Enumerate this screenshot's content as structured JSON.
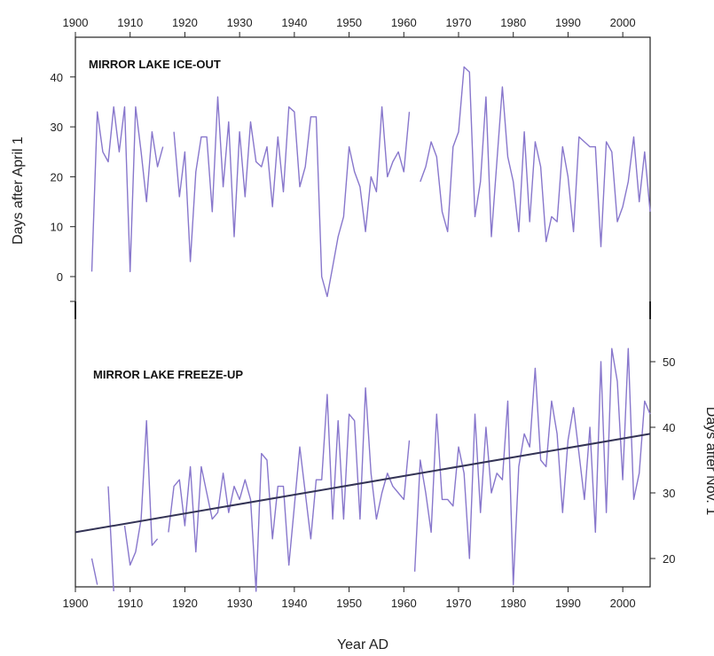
{
  "chart_data": [
    {
      "type": "line",
      "title": "MIRROR LAKE ICE-OUT",
      "xlabel": "Year AD",
      "ylabel": "Days after April 1",
      "xlim": [
        1900,
        2005
      ],
      "ylim": [
        -8,
        45
      ],
      "x_ticks": [
        1900,
        1910,
        1920,
        1930,
        1940,
        1950,
        1960,
        1970,
        1980,
        1990,
        2000
      ],
      "y_ticks": [
        0,
        10,
        20,
        30,
        40
      ],
      "series_color": "#8877cc",
      "segments": [
        {
          "x": [
            1903,
            1904,
            1905,
            1906,
            1907,
            1908,
            1909,
            1910,
            1911,
            1912,
            1913,
            1914,
            1915,
            1916
          ],
          "y": [
            1,
            33,
            25,
            23,
            34,
            25,
            34,
            1,
            34,
            25,
            15,
            29,
            22,
            26
          ]
        },
        {
          "x": [
            1918,
            1919,
            1920,
            1921,
            1922,
            1923,
            1924,
            1925,
            1926,
            1927,
            1928,
            1929,
            1930,
            1931,
            1932,
            1933,
            1934,
            1935,
            1936,
            1937,
            1938,
            1939,
            1940,
            1941,
            1942,
            1943,
            1944,
            1945,
            1946,
            1947,
            1948,
            1949,
            1950,
            1951,
            1952,
            1953,
            1954,
            1955,
            1956,
            1957,
            1958,
            1959,
            1960,
            1961
          ],
          "y": [
            29,
            16,
            25,
            3,
            21,
            28,
            28,
            13,
            36,
            18,
            31,
            8,
            29,
            16,
            31,
            23,
            22,
            26,
            14,
            28,
            17,
            34,
            33,
            18,
            22,
            32,
            32,
            0,
            -4,
            2,
            8,
            12,
            26,
            21,
            18,
            9,
            20,
            17,
            34,
            20,
            23,
            25,
            21,
            33
          ]
        },
        {
          "x": [
            1963,
            1964,
            1965,
            1966,
            1967,
            1968,
            1969,
            1970,
            1971,
            1972,
            1973,
            1974,
            1975,
            1976,
            1977,
            1978,
            1979,
            1980,
            1981,
            1982,
            1983,
            1984,
            1985,
            1986,
            1987,
            1988,
            1989,
            1990,
            1991,
            1992,
            1993,
            1994,
            1995,
            1996,
            1997,
            1998,
            1999,
            2000,
            2001,
            2002,
            2003,
            2004,
            2005
          ],
          "y": [
            19,
            22,
            27,
            24,
            13,
            9,
            26,
            29,
            42,
            41,
            12,
            19,
            36,
            8,
            23,
            38,
            24,
            19,
            9,
            29,
            11,
            27,
            22,
            7,
            12,
            11,
            26,
            20,
            9,
            28,
            27,
            26,
            26,
            6,
            27,
            25,
            11,
            14,
            19,
            28,
            15,
            25,
            13
          ]
        }
      ]
    },
    {
      "type": "line",
      "title": "MIRROR LAKE FREEZE-UP",
      "xlabel": "Year AD",
      "ylabel": "Days after Nov. 1",
      "xlim": [
        1900,
        2005
      ],
      "ylim": [
        11,
        55
      ],
      "x_ticks": [
        1900,
        1910,
        1920,
        1930,
        1940,
        1950,
        1960,
        1970,
        1980,
        1990,
        2000
      ],
      "y_ticks": [
        20,
        30,
        40,
        50
      ],
      "series_color": "#8877cc",
      "trend_color": "#333355",
      "segments": [
        {
          "x": [
            1903,
            1904
          ],
          "y": [
            20,
            16
          ]
        },
        {
          "x": [
            1906,
            1907
          ],
          "y": [
            31,
            15
          ]
        },
        {
          "x": [
            1909,
            1910,
            1911,
            1912,
            1913,
            1914,
            1915
          ],
          "y": [
            25,
            19,
            21,
            26,
            41,
            22,
            23
          ]
        },
        {
          "x": [
            1917,
            1918,
            1919,
            1920,
            1921,
            1922,
            1923,
            1924,
            1925,
            1926,
            1927,
            1928,
            1929,
            1930,
            1931,
            1932,
            1933,
            1934,
            1935,
            1936,
            1937,
            1938,
            1939,
            1940,
            1941,
            1942,
            1943,
            1944,
            1945,
            1946,
            1947,
            1948,
            1949,
            1950,
            1951,
            1952,
            1953,
            1954,
            1955,
            1956,
            1957,
            1958,
            1959,
            1960,
            1961
          ],
          "y": [
            24,
            31,
            32,
            25,
            34,
            21,
            34,
            30,
            26,
            27,
            33,
            27,
            31,
            29,
            32,
            29,
            15,
            36,
            35,
            23,
            31,
            31,
            19,
            28,
            37,
            30,
            23,
            32,
            32,
            45,
            26,
            41,
            26,
            42,
            41,
            26,
            46,
            33,
            26,
            30,
            33,
            31,
            30,
            29,
            38
          ]
        },
        {
          "x": [
            1962,
            1963,
            1964,
            1965,
            1966,
            1967,
            1968,
            1969,
            1970,
            1971,
            1972,
            1973,
            1974,
            1975,
            1976,
            1977,
            1978,
            1979,
            1980,
            1981,
            1982,
            1983,
            1984,
            1985,
            1986,
            1987,
            1988,
            1989,
            1990,
            1991,
            1992,
            1993,
            1994,
            1995,
            1996,
            1997,
            1998,
            1999,
            2000,
            2001,
            2002,
            2003,
            2004,
            2005
          ],
          "y": [
            18,
            35,
            30,
            24,
            42,
            29,
            29,
            28,
            37,
            33,
            20,
            42,
            27,
            40,
            30,
            33,
            32,
            44,
            16,
            34,
            39,
            37,
            49,
            35,
            34,
            44,
            39,
            27,
            38,
            43,
            36,
            29,
            40,
            24,
            50,
            27,
            52,
            47,
            32,
            52,
            29,
            33,
            44,
            42
          ]
        }
      ],
      "trend": {
        "x": [
          1900,
          2005
        ],
        "y": [
          24,
          39
        ]
      }
    }
  ]
}
